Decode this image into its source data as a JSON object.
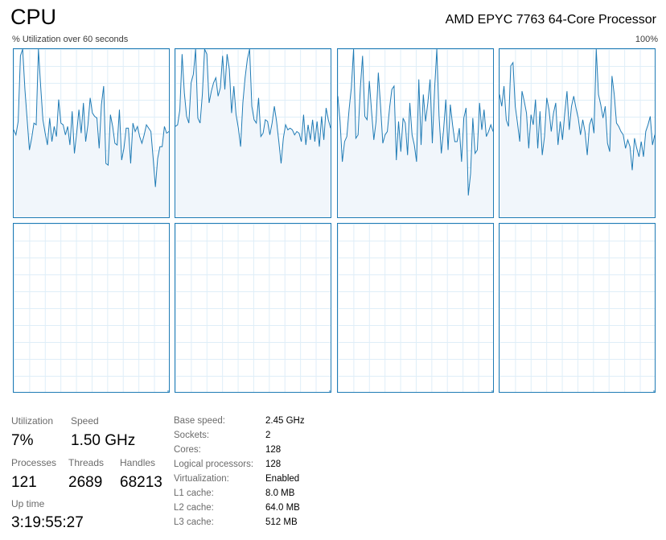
{
  "header": {
    "title": "CPU",
    "processor": "AMD EPYC 7763 64-Core Processor",
    "util_caption": "% Utilization over 60 seconds",
    "max_label": "100%"
  },
  "colors": {
    "line": "#1f7bb5",
    "fill": "#f1f6fb",
    "grid": "#dfeef8"
  },
  "chart_data": {
    "type": "area",
    "ylim": [
      0,
      100
    ],
    "xlim": [
      0,
      60
    ],
    "series": [
      {
        "values": [
          52,
          49,
          57,
          96,
          100,
          76,
          58,
          40,
          47,
          56,
          55,
          100,
          78,
          58,
          50,
          43,
          59,
          45,
          54,
          48,
          70,
          56,
          55,
          49,
          54,
          43,
          63,
          38,
          50,
          64,
          50,
          68,
          45,
          55,
          71,
          62,
          60,
          59,
          41,
          67,
          78,
          32,
          31,
          61,
          54,
          44,
          43,
          64,
          34,
          41,
          53,
          53,
          32,
          56,
          51,
          54,
          48,
          44,
          49,
          55,
          53,
          51,
          35,
          18,
          35,
          42,
          42,
          54,
          50,
          51
        ],
        "kernel": [
          0,
          0,
          0,
          0,
          0,
          0,
          0,
          0,
          0,
          0,
          0,
          0,
          0,
          0,
          0,
          0,
          0,
          0,
          0,
          0,
          0,
          0,
          0,
          0,
          0,
          0,
          0,
          0,
          0,
          0,
          0,
          0,
          0,
          0,
          0,
          0,
          0,
          0,
          0,
          0,
          0,
          0,
          0,
          0,
          0,
          0,
          0,
          0,
          0,
          0,
          0,
          0,
          0,
          0,
          0,
          0,
          0,
          0,
          0,
          0,
          0,
          0,
          0,
          0,
          0,
          0,
          0,
          0,
          0,
          0
        ]
      },
      {
        "values": [
          54,
          55,
          64,
          97,
          74,
          60,
          56,
          80,
          85,
          100,
          59,
          56,
          73,
          100,
          97,
          68,
          75,
          80,
          83,
          72,
          77,
          96,
          76,
          97,
          88,
          62,
          78,
          61,
          53,
          42,
          68,
          83,
          94,
          100,
          66,
          58,
          56,
          71,
          48,
          50,
          58,
          57,
          49,
          56,
          66,
          57,
          45,
          32,
          47,
          55,
          52,
          53,
          52,
          49,
          51,
          50,
          45,
          61,
          43,
          55,
          46,
          58,
          45,
          57,
          42,
          60,
          46,
          65,
          58,
          53
        ],
        "kernel": [
          0,
          0,
          0,
          0,
          0,
          0,
          0,
          0,
          0,
          0,
          0,
          0,
          0,
          0,
          0,
          0,
          0,
          0,
          0,
          0,
          0,
          0,
          0,
          0,
          0,
          0,
          0,
          0,
          0,
          0,
          0,
          0,
          0,
          0,
          0,
          0,
          0,
          0,
          0,
          0,
          0,
          0,
          0,
          0,
          0,
          0,
          0,
          0,
          0,
          0,
          0,
          0,
          0,
          0,
          0,
          0,
          0,
          0,
          0,
          0,
          0,
          0,
          0,
          0,
          0,
          0,
          0,
          0,
          0,
          0
        ]
      },
      {
        "values": [
          72,
          57,
          33,
          45,
          48,
          64,
          77,
          100,
          47,
          49,
          77,
          96,
          60,
          58,
          81,
          63,
          46,
          57,
          86,
          66,
          44,
          49,
          51,
          65,
          76,
          78,
          34,
          57,
          39,
          59,
          56,
          37,
          68,
          49,
          43,
          33,
          82,
          43,
          73,
          57,
          68,
          82,
          44,
          76,
          100,
          60,
          38,
          52,
          70,
          40,
          67,
          55,
          45,
          45,
          53,
          33,
          59,
          65,
          13,
          26,
          59,
          38,
          40,
          68,
          52,
          64,
          48,
          51,
          55,
          51
        ],
        "kernel": [
          0,
          0,
          0,
          0,
          0,
          0,
          0,
          0,
          0,
          0,
          0,
          0,
          0,
          0,
          0,
          0,
          0,
          0,
          0,
          0,
          0,
          0,
          0,
          0,
          0,
          0,
          0,
          0,
          0,
          0,
          0,
          0,
          0,
          0,
          0,
          0,
          0,
          0,
          0,
          0,
          0,
          0,
          0,
          0,
          0,
          0,
          0,
          0,
          0,
          0,
          0,
          0,
          0,
          0,
          0,
          0,
          0,
          0,
          0,
          0,
          0,
          0,
          0,
          0,
          0,
          0,
          0,
          0,
          0,
          0
        ]
      },
      {
        "values": [
          73,
          66,
          78,
          58,
          54,
          90,
          92,
          66,
          56,
          45,
          75,
          69,
          62,
          41,
          61,
          55,
          70,
          41,
          63,
          37,
          48,
          71,
          64,
          51,
          62,
          68,
          43,
          57,
          46,
          62,
          75,
          52,
          66,
          72,
          65,
          59,
          49,
          58,
          51,
          37,
          55,
          59,
          50,
          100,
          73,
          67,
          59,
          66,
          44,
          39,
          84,
          73,
          56,
          54,
          51,
          49,
          41,
          46,
          42,
          28,
          47,
          41,
          36,
          45,
          36,
          51,
          55,
          60,
          43,
          49
        ],
        "kernel": [
          0,
          0,
          0,
          0,
          0,
          0,
          0,
          0,
          0,
          0,
          0,
          0,
          0,
          0,
          0,
          0,
          0,
          0,
          0,
          0,
          0,
          0,
          0,
          0,
          0,
          0,
          0,
          0,
          0,
          0,
          0,
          0,
          0,
          0,
          0,
          0,
          0,
          0,
          0,
          0,
          0,
          0,
          0,
          0,
          0,
          0,
          0,
          0,
          0,
          0,
          0,
          0,
          0,
          0,
          0,
          0,
          0,
          0,
          0,
          0,
          0,
          0,
          0,
          0,
          0,
          0,
          0,
          0,
          0,
          0
        ]
      },
      {
        "values": [
          0
        ],
        "kernel": [
          0
        ]
      },
      {
        "values": [
          0
        ],
        "kernel": [
          0
        ]
      },
      {
        "values": [
          0
        ],
        "kernel": [
          0
        ]
      },
      {
        "values": [
          0
        ],
        "kernel": [
          0
        ]
      }
    ]
  },
  "stats": {
    "utilization_label": "Utilization",
    "utilization_value": "7%",
    "speed_label": "Speed",
    "speed_value": "1.50 GHz",
    "processes_label": "Processes",
    "processes_value": "121",
    "threads_label": "Threads",
    "threads_value": "2689",
    "handles_label": "Handles",
    "handles_value": "68213",
    "uptime_label": "Up time",
    "uptime_value": "3:19:55:27"
  },
  "info": [
    {
      "key": "Base speed:",
      "value": "2.45 GHz"
    },
    {
      "key": "Sockets:",
      "value": "2"
    },
    {
      "key": "Cores:",
      "value": "128"
    },
    {
      "key": "Logical processors:",
      "value": "128"
    },
    {
      "key": "Virtualization:",
      "value": "Enabled"
    },
    {
      "key": "L1 cache:",
      "value": "8.0 MB"
    },
    {
      "key": "L2 cache:",
      "value": "64.0 MB"
    },
    {
      "key": "L3 cache:",
      "value": "512 MB"
    }
  ]
}
